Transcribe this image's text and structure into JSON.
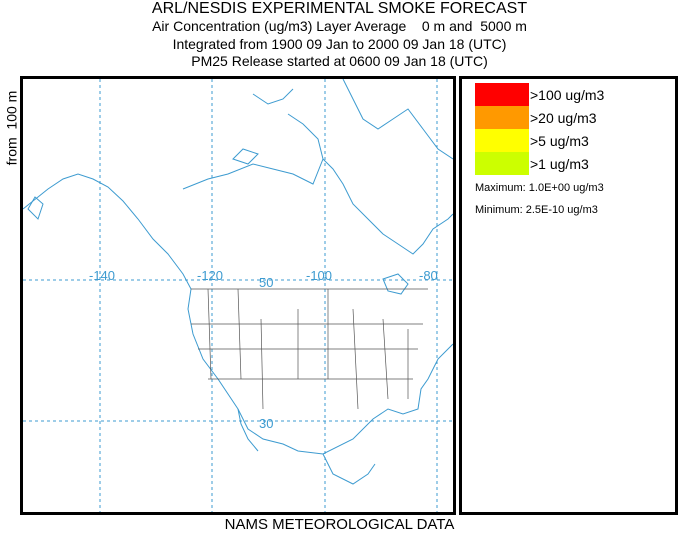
{
  "header": {
    "title": "ARL/NESDIS EXPERIMENTAL SMOKE FORECAST",
    "line1": "Air Concentration (ug/m3) Layer Average    0 m and  5000 m",
    "line2": "Integrated from 1900 09 Jan to 2000 09 Jan 18 (UTC)",
    "line3": "PM25 Release started at 0600 09 Jan 18 (UTC)"
  },
  "side_label": "from  100 m",
  "footer": "NAMS METEOROLOGICAL DATA",
  "map": {
    "longitude_labels": [
      "-140",
      "-120",
      "-100",
      "-80"
    ],
    "latitude_labels": [
      "50",
      "30"
    ],
    "grid_color": "#3d9bd0",
    "coast_color": "#3d9bd0",
    "border_color": "#555555"
  },
  "legend": {
    "items": [
      {
        "label": ">100 ug/m3",
        "color": "#ff0000"
      },
      {
        "label": ">20 ug/m3",
        "color": "#ff9900"
      },
      {
        "label": ">5 ug/m3",
        "color": "#ffff00"
      },
      {
        "label": ">1 ug/m3",
        "color": "#ccff00"
      }
    ],
    "maximum": "Maximum: 1.0E+00 ug/m3",
    "minimum": "Minimum: 2.5E-10 ug/m3"
  }
}
